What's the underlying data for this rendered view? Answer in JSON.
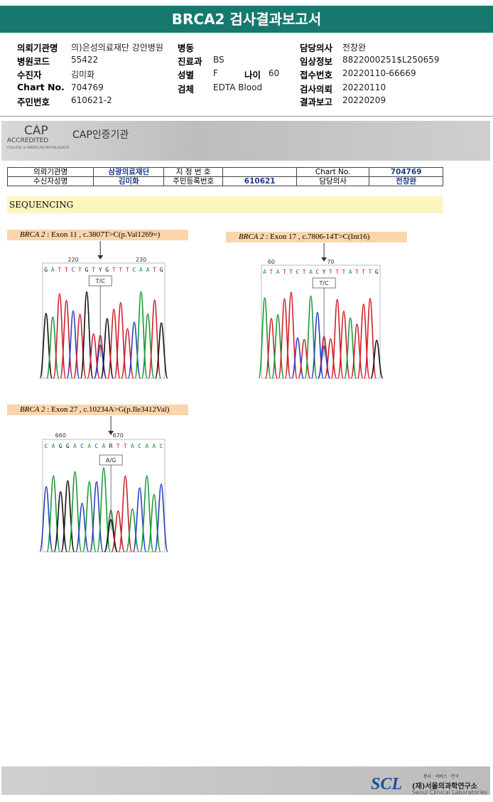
{
  "header": {
    "title": "BRCA2 검사결과보고서"
  },
  "info": [
    {
      "label": "의뢰기관명",
      "value": "의)은성의료재단 강안병원"
    },
    {
      "label": "병동"
    },
    {
      "label": "담당의사",
      "value": "전창완"
    },
    {
      "label": "병원코드",
      "value": "55422"
    },
    {
      "label": "진료과",
      "value": "BS"
    },
    {
      "label": "임상정보",
      "value": "8822000251$L250659"
    },
    {
      "label": "수진자",
      "value": "김미화"
    },
    {
      "label": "성별",
      "value": "F"
    },
    {
      "label": "나이",
      "value": "60"
    },
    {
      "label": "접수번호",
      "value": "20220110-66669"
    },
    {
      "label": "Chart No.",
      "value": "704769"
    },
    {
      "label": "검체",
      "value": "EDTA Blood"
    },
    {
      "label": "검사의뢰",
      "value": "20220110"
    },
    {
      "label": "주민번호",
      "value": "610621-2"
    },
    {
      "label": "결과보고",
      "value": "20220209"
    }
  ],
  "cap": {
    "logo": "CAP",
    "accredited": "ACCREDITED",
    "college": "COLLEGE of AMERICAN PATHOLOGISTS",
    "title": "CAP인증기관"
  },
  "summary_table": {
    "rows": [
      [
        "의뢰기관명",
        "삼광의료재단",
        "지 정 번 호",
        null,
        "Chart No.",
        "704769"
      ],
      [
        "수신자성명",
        "김미화",
        "주민등록번호",
        "610621",
        "담당의사",
        "전창완"
      ]
    ]
  },
  "section": "SEQUENCING",
  "chromatograms": [
    {
      "gene": "BRCA 2",
      "variant": ": Exon 11 , c.3807T>C(p.Val1269=)",
      "sequence": "GATTCTGTYGTTTCAATG",
      "ticks": [
        220,
        230
      ],
      "call": "T/C"
    },
    {
      "gene": "BRCA 2",
      "variant": ": Exon 17 , c.7806-14T>C(Int16)",
      "sequence": "ATATTCTACYTTTATTTG",
      "ticks": [
        60,
        70
      ],
      "call": "T/C"
    },
    {
      "gene": "BRCA 2",
      "variant": ": Exon 27 , c.10234A>G(p.Ile3412Val)",
      "sequence": "CAGGACACARTTACAAC",
      "ticks": [
        660,
        670
      ],
      "call": "A/G"
    }
  ],
  "footer": {
    "logo": "SCL",
    "motto": "봉사 · 서비스 · 연구",
    "org": "(재)서울의과학연구소",
    "org_en": "Seoul Clinical Laboratories"
  }
}
